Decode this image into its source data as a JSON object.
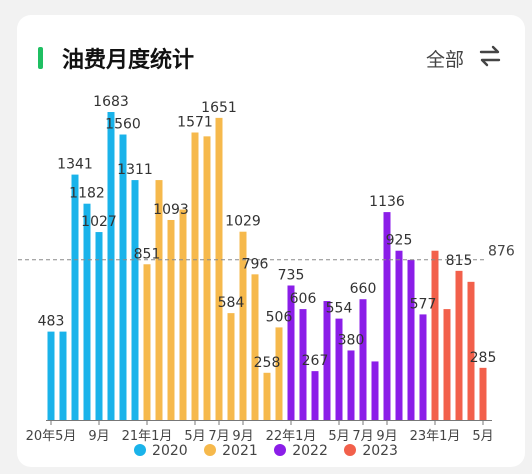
{
  "header": {
    "title": "油费月度统计",
    "filter_label": "全部",
    "swap_icon": "swap-arrows-icon"
  },
  "colors": {
    "accent": "#1fbf62",
    "2020": "#1ab3ea",
    "2021": "#f6b94c",
    "2022": "#8b1ee8",
    "2023": "#f2604b"
  },
  "chart_data": {
    "type": "bar",
    "x_tick_labels": [
      "20年5月",
      "9月",
      "21年1月",
      "5月",
      "7月",
      "9月",
      "22年1月",
      "5月",
      "7月",
      "9月",
      "23年1月",
      "5月"
    ],
    "reference_line": {
      "value": 876,
      "label": "876"
    },
    "legend": [
      "2020",
      "2021",
      "2022",
      "2023"
    ],
    "series": [
      {
        "name": "2020",
        "values": [
          483,
          483,
          1341,
          1182,
          1027,
          1683,
          1560,
          1311
        ]
      },
      {
        "name": "2021",
        "values": [
          851,
          1311,
          1093,
          1150,
          1571,
          1550,
          1651,
          584,
          1029,
          796,
          258,
          506
        ]
      },
      {
        "name": "2022",
        "values": [
          735,
          606,
          267,
          650,
          554,
          380,
          660,
          320,
          1136,
          925,
          875,
          577
        ]
      },
      {
        "name": "2023",
        "values": [
          925,
          606,
          815,
          755,
          285
        ]
      }
    ],
    "data_labels": [
      {
        "series": "2020",
        "index": 0,
        "text": "483"
      },
      {
        "series": "2020",
        "index": 2,
        "text": "1341"
      },
      {
        "series": "2020",
        "index": 3,
        "text": "1182"
      },
      {
        "series": "2020",
        "index": 4,
        "text": "1027"
      },
      {
        "series": "2020",
        "index": 5,
        "text": "1683"
      },
      {
        "series": "2020",
        "index": 6,
        "text": "1560"
      },
      {
        "series": "2020",
        "index": 7,
        "text": "1311"
      },
      {
        "series": "2021",
        "index": 0,
        "text": "851"
      },
      {
        "series": "2021",
        "index": 2,
        "text": "1093"
      },
      {
        "series": "2021",
        "index": 4,
        "text": "1571"
      },
      {
        "series": "2021",
        "index": 6,
        "text": "1651"
      },
      {
        "series": "2021",
        "index": 7,
        "text": "584"
      },
      {
        "series": "2021",
        "index": 8,
        "text": "1029"
      },
      {
        "series": "2021",
        "index": 9,
        "text": "796"
      },
      {
        "series": "2021",
        "index": 10,
        "text": "258"
      },
      {
        "series": "2021",
        "index": 11,
        "text": "506"
      },
      {
        "series": "2022",
        "index": 0,
        "text": "735"
      },
      {
        "series": "2022",
        "index": 1,
        "text": "606"
      },
      {
        "series": "2022",
        "index": 2,
        "text": "267"
      },
      {
        "series": "2022",
        "index": 4,
        "text": "554"
      },
      {
        "series": "2022",
        "index": 5,
        "text": "380"
      },
      {
        "series": "2022",
        "index": 6,
        "text": "660"
      },
      {
        "series": "2022",
        "index": 8,
        "text": "1136"
      },
      {
        "series": "2022",
        "index": 9,
        "text": "925"
      },
      {
        "series": "2022",
        "index": 11,
        "text": "577"
      },
      {
        "series": "2023",
        "index": 2,
        "text": "815"
      },
      {
        "series": "2023",
        "index": 4,
        "text": "285"
      }
    ]
  }
}
